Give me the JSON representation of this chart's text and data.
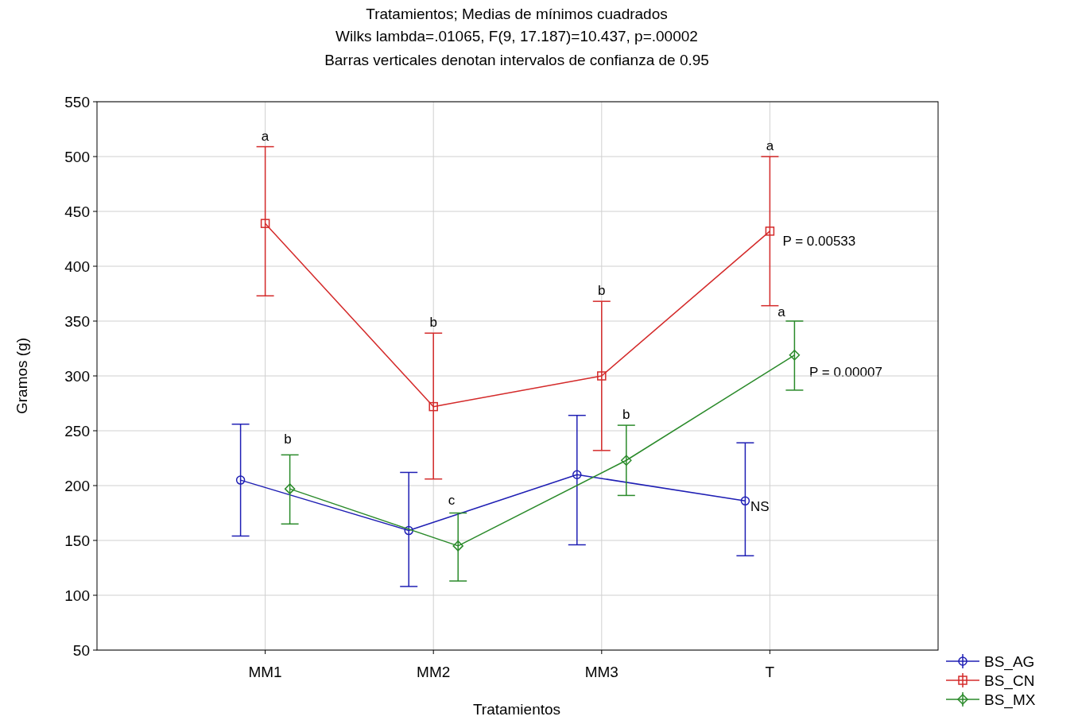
{
  "chart_data": {
    "type": "line",
    "title": "Tratamientos; Medias de mínimos cuadrados",
    "subtitle": "Wilks lambda=.01065, F(9, 17.187)=10.437, p=.00002",
    "xlabel": "Tratamientos",
    "ylabel": "Gramos (g)",
    "categories": [
      "MM1",
      "MM2",
      "MM3",
      "T"
    ],
    "series": [
      {
        "name": "BS_AG",
        "color": "#1f1fb4",
        "marker": "circle",
        "values": [
          205,
          159,
          210,
          186
        ],
        "errors": [
          [
            154,
            256
          ],
          [
            108,
            212
          ],
          [
            146,
            264
          ],
          [
            136,
            239
          ]
        ]
      },
      {
        "name": "BS_CN",
        "color": "#d42a2a",
        "marker": "square",
        "values": [
          439,
          272,
          300,
          432
        ],
        "errors": [
          [
            373,
            509
          ],
          [
            206,
            339
          ],
          [
            232,
            368
          ],
          [
            364,
            500
          ]
        ]
      },
      {
        "name": "BS_MX",
        "color": "#2a8a2a",
        "marker": "diamond",
        "values": [
          197,
          145,
          223,
          319
        ],
        "errors": [
          [
            165,
            228
          ],
          [
            113,
            175
          ],
          [
            191,
            255
          ],
          [
            287,
            350
          ]
        ]
      }
    ],
    "ylim": [
      50,
      550
    ],
    "yticks": [
      50,
      100,
      150,
      200,
      250,
      300,
      350,
      400,
      450,
      500,
      550
    ],
    "grid": true,
    "legend": "bottom right",
    "annotations": [
      "Barras verticales denotan intervalos de confianza de 0.95",
      "b",
      "c",
      "a",
      "P = 0.00007",
      "NS",
      {
        "text": "a",
        "x": "MM1",
        "y": 509
      },
      {
        "text": "b",
        "x": "MM2",
        "y": 339
      },
      {
        "text": "b",
        "x": "MM3",
        "y": 368
      },
      {
        "text": "a",
        "x": "T",
        "y": 500
      },
      {
        "text": "b",
        "x": "MM3",
        "y": 255
      },
      {
        "text": "P = 0.00533",
        "x": "T",
        "y": 432
      }
    ]
  }
}
